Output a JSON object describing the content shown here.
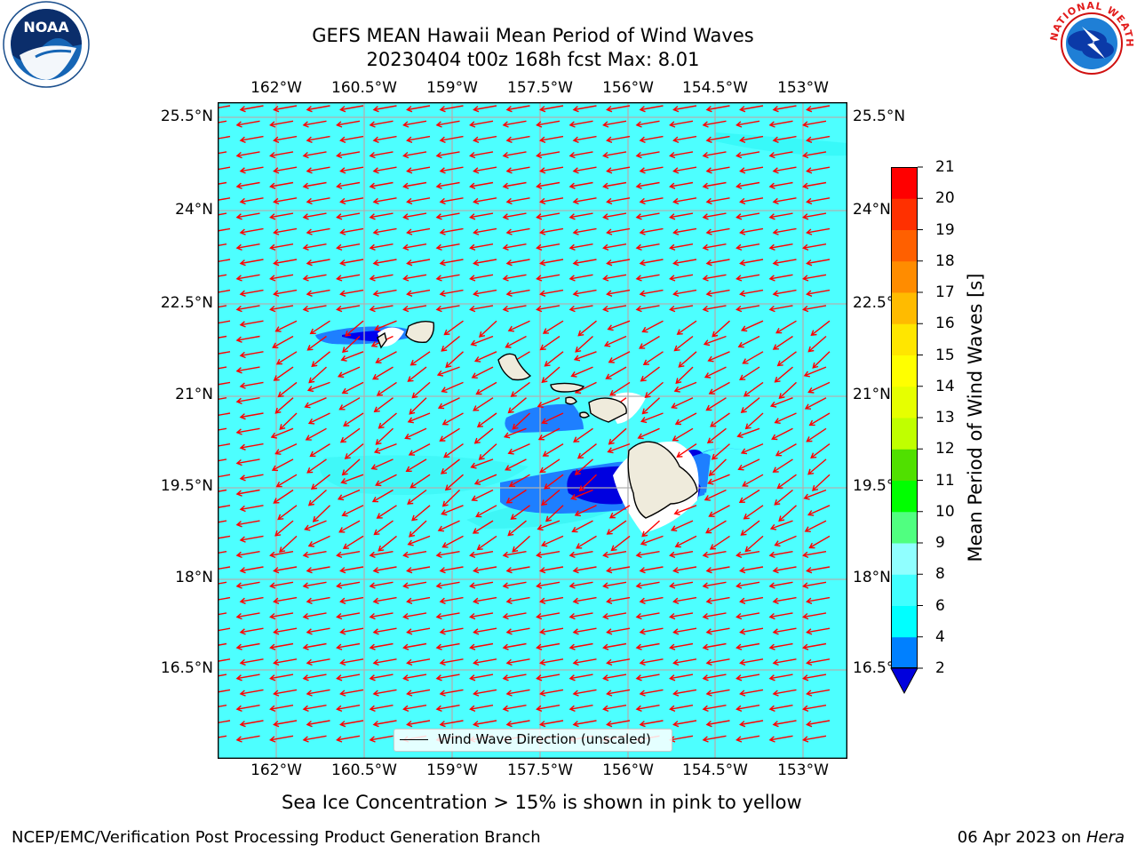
{
  "title": {
    "line1": "GEFS MEAN Hawaii Mean Period of Wind Waves",
    "line2": "20230404 t00z 168h fcst   Max: 8.01"
  },
  "logos": {
    "left": "noaa-logo",
    "right": "nws-logo",
    "left_lettering": "NOAA",
    "right_lettering": "NATIONAL WEATHER SERVICE"
  },
  "axes": {
    "lon_ticks": [
      "162°W",
      "160.5°W",
      "159°W",
      "157.5°W",
      "156°W",
      "154.5°W",
      "153°W"
    ],
    "lat_ticks": [
      "25.5°N",
      "24°N",
      "22.5°N",
      "21°N",
      "19.5°N",
      "18°N",
      "16.5°N"
    ]
  },
  "colorbar": {
    "label": "Mean Period of Wind Waves [s]",
    "levels": [
      "2",
      "4",
      "6",
      "8",
      "9",
      "10",
      "11",
      "12",
      "13",
      "14",
      "15",
      "16",
      "17",
      "18",
      "19",
      "20",
      "21"
    ],
    "colors": [
      "#0000ff",
      "#0080ff",
      "#00ffff",
      "#40ffff",
      "#90ffff",
      "#50ff80",
      "#00ff00",
      "#50e000",
      "#c0ff00",
      "#e6ff00",
      "#ffff00",
      "#ffe600",
      "#ffbb00",
      "#ff8c00",
      "#ff6000",
      "#ff3000",
      "#ff0000"
    ],
    "under_color": "#0000dd"
  },
  "legend": {
    "label": "Wind Wave Direction (unscaled)"
  },
  "map_colors": {
    "ocean": "#4dffff",
    "arrow": "#ff0000",
    "land": "#efebdc",
    "grid": "#b0b0b0"
  },
  "note": "Sea Ice Concentration > 15% is shown in pink to yellow",
  "footer": {
    "left": "NCEP/EMC/Verification Post Processing Product Generation Branch",
    "right_prefix": "06 Apr 2023 on ",
    "right_host": "Hera"
  }
}
